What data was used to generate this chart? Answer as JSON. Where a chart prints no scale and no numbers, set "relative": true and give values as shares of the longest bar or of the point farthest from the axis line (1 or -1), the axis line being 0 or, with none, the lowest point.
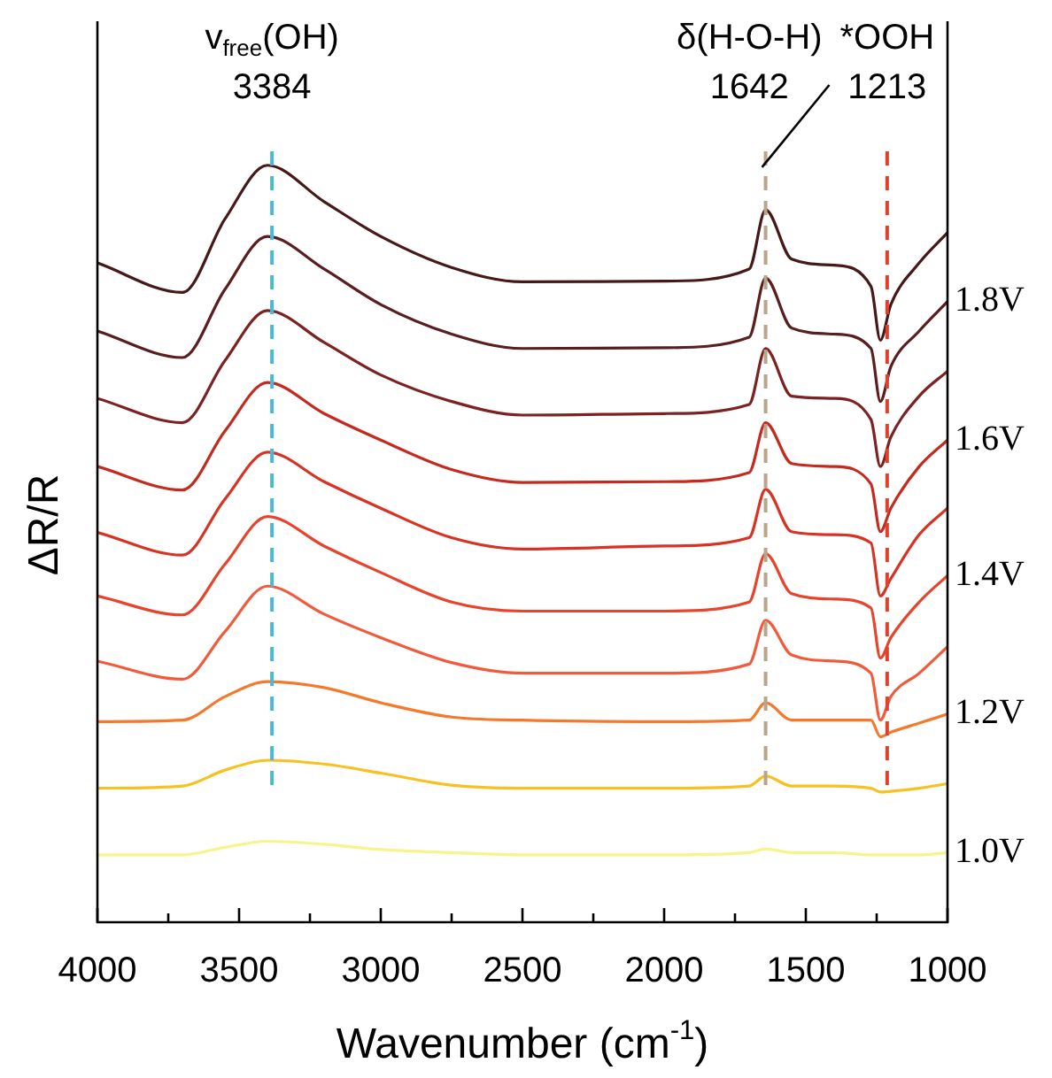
{
  "chart_data": {
    "type": "line",
    "relative": true,
    "xlabel": "Wavenumber (cm$^{-1}$)",
    "ylabel": "ΔR/R",
    "marker": "none",
    "x": [
      4000,
      3700,
      3550,
      3400,
      3200,
      3000,
      2750,
      2500,
      2000,
      1700,
      1642,
      1550,
      1400,
      1270,
      1237,
      1200,
      1100,
      1000
    ],
    "xlim": [
      4000,
      1000
    ],
    "xticks": [
      4000,
      {
        "value": 3750,
        "label": null
      },
      3500,
      {
        "value": 3250,
        "label": null
      },
      3000,
      {
        "value": 2750,
        "label": null
      },
      2500,
      {
        "value": 2250,
        "label": null
      },
      2000,
      {
        "value": 1750,
        "label": null
      },
      1500,
      {
        "value": 1250,
        "label": null
      },
      1000
    ],
    "series": [
      {
        "name": "1.0V",
        "color": "#f8f48c",
        "values": [
          0.089,
          0.089,
          0.099,
          0.107,
          0.103,
          0.096,
          0.092,
          0.089,
          0.089,
          0.092,
          0.097,
          0.092,
          0.092,
          0.089,
          0.089,
          0.089,
          0.089,
          0.092
        ]
      },
      {
        "color": "#f8c020",
        "values": [
          0.177,
          0.18,
          0.201,
          0.214,
          0.209,
          0.197,
          0.181,
          0.177,
          0.177,
          0.18,
          0.193,
          0.18,
          0.18,
          0.177,
          0.172,
          0.173,
          0.177,
          0.183
        ]
      },
      {
        "name": "1.2V",
        "color": "#f5782c",
        "values": [
          0.265,
          0.267,
          0.298,
          0.318,
          0.31,
          0.29,
          0.271,
          0.267,
          0.265,
          0.267,
          0.29,
          0.267,
          0.267,
          0.267,
          0.245,
          0.251,
          0.263,
          0.275
        ]
      },
      {
        "color": "#f25a3c",
        "values": [
          0.345,
          0.321,
          0.384,
          0.444,
          0.407,
          0.376,
          0.343,
          0.329,
          0.329,
          0.341,
          0.399,
          0.353,
          0.345,
          0.329,
          0.267,
          0.298,
          0.329,
          0.364
        ]
      },
      {
        "name": "1.4V",
        "color": "#e8432c",
        "values": [
          0.431,
          0.406,
          0.473,
          0.536,
          0.497,
          0.462,
          0.423,
          0.411,
          0.411,
          0.423,
          0.487,
          0.434,
          0.427,
          0.415,
          0.349,
          0.376,
          0.423,
          0.458
        ]
      },
      {
        "color": "#d83222",
        "values": [
          0.515,
          0.485,
          0.559,
          0.621,
          0.582,
          0.547,
          0.508,
          0.493,
          0.497,
          0.508,
          0.572,
          0.516,
          0.512,
          0.501,
          0.431,
          0.454,
          0.512,
          0.547
        ]
      },
      {
        "name": "1.6V",
        "color": "#c42a1e",
        "values": [
          0.602,
          0.571,
          0.649,
          0.713,
          0.672,
          0.637,
          0.598,
          0.581,
          0.582,
          0.594,
          0.66,
          0.606,
          0.602,
          0.579,
          0.516,
          0.547,
          0.602,
          0.637
        ]
      },
      {
        "color": "#7c2222",
        "values": [
          0.692,
          0.66,
          0.742,
          0.808,
          0.766,
          0.723,
          0.688,
          0.67,
          0.672,
          0.684,
          0.758,
          0.695,
          0.692,
          0.664,
          0.602,
          0.641,
          0.695,
          0.728
        ]
      },
      {
        "name": "1.8V",
        "color": "#5a1e1e",
        "values": [
          0.781,
          0.746,
          0.836,
          0.906,
          0.863,
          0.816,
          0.777,
          0.758,
          0.759,
          0.773,
          0.851,
          0.785,
          0.777,
          0.758,
          0.688,
          0.734,
          0.781,
          0.82
        ]
      },
      {
        "color": "#461818",
        "values": [
          0.871,
          0.832,
          0.929,
          1.0,
          0.952,
          0.906,
          0.865,
          0.846,
          0.847,
          0.863,
          0.941,
          0.876,
          0.868,
          0.84,
          0.769,
          0.816,
          0.871,
          0.911
        ]
      }
    ],
    "ref_lines": [
      {
        "axis": "x",
        "value": 3384,
        "label": "3384",
        "color": "#4ab8d8",
        "line_style": "dashed"
      },
      {
        "axis": "x",
        "value": 1642,
        "label": "1642",
        "color": "#b8a68c",
        "line_style": "dashed"
      },
      {
        "axis": "x",
        "value": 1213,
        "label": "1213",
        "color": "#e0402c",
        "line_style": "dashed"
      }
    ],
    "annotations": [
      "v$_{free}$(OH)",
      "δ(H-O-H)",
      "*OOH"
    ]
  }
}
